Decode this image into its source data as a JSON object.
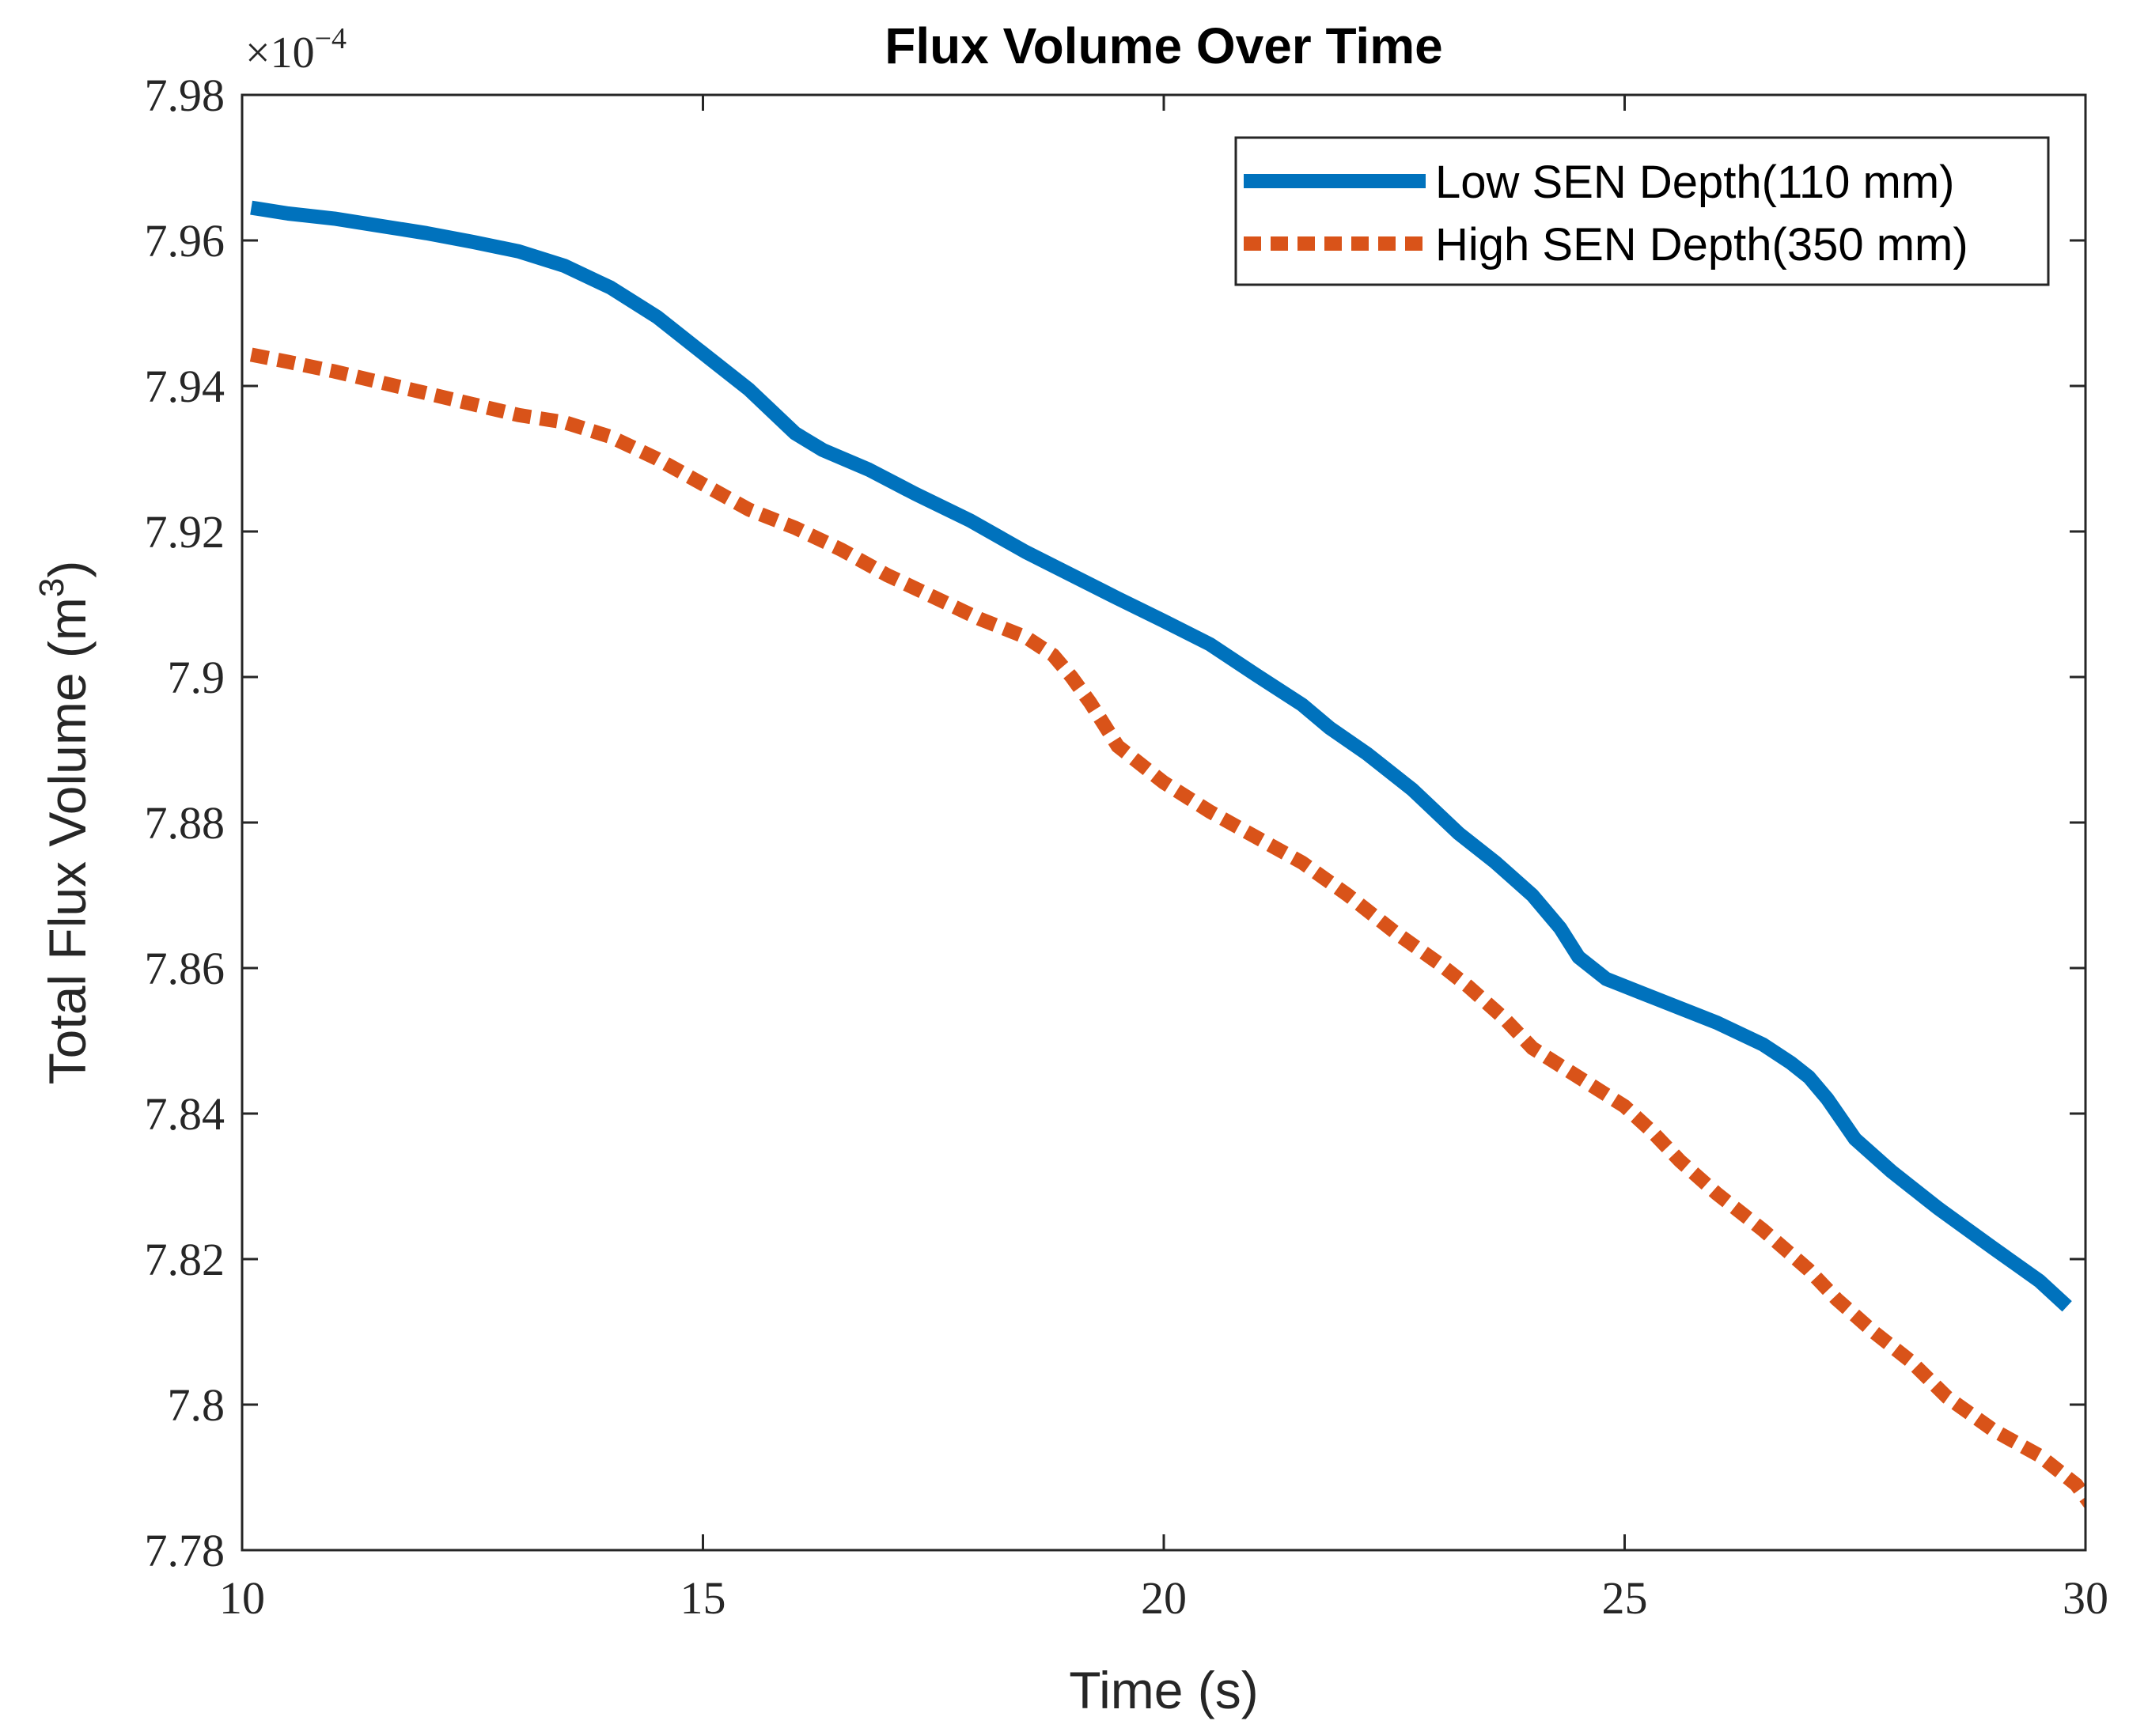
{
  "chart_data": {
    "type": "line",
    "title": "Flux Volume Over Time",
    "xlabel": "Time (s)",
    "ylabel": "Total Flux Volume (m",
    "ylabel_superscript": "3",
    "ylabel_suffix": ")",
    "y_multiplier": "×10",
    "y_multiplier_exponent": "−4",
    "xlim": [
      10,
      30
    ],
    "ylim": [
      7.78,
      7.98
    ],
    "x_ticks": [
      10,
      15,
      20,
      25,
      30
    ],
    "x_tick_labels": [
      "10",
      "15",
      "20",
      "25",
      "30"
    ],
    "y_ticks": [
      7.78,
      7.8,
      7.82,
      7.84,
      7.86,
      7.88,
      7.9,
      7.92,
      7.94,
      7.96,
      7.98
    ],
    "y_tick_labels": [
      "7.78",
      "7.8",
      "7.82",
      "7.84",
      "7.86",
      "7.88",
      "7.9",
      "7.92",
      "7.94",
      "7.96",
      "7.98"
    ],
    "grid": false,
    "legend_position": "top-right",
    "series": [
      {
        "name": "Low SEN Depth(110 mm)",
        "color": "#0072BD",
        "style": "solid",
        "x": [
          10.1,
          10.5,
          11,
          11.5,
          12,
          12.5,
          13,
          13.5,
          14,
          14.5,
          15,
          15.5,
          16,
          16.3,
          16.8,
          17.3,
          17.9,
          18.5,
          19,
          19.5,
          20,
          20.5,
          21,
          21.5,
          21.8,
          22.2,
          22.7,
          23.2,
          23.6,
          24,
          24.3,
          24.5,
          24.8,
          25.2,
          25.6,
          26,
          26.5,
          26.8,
          27,
          27.2,
          27.5,
          27.9,
          28.4,
          29,
          29.5,
          29.8
        ],
        "values": [
          7.9645,
          7.9637,
          7.963,
          7.962,
          7.961,
          7.9598,
          7.9585,
          7.9565,
          7.9535,
          7.9495,
          7.9445,
          7.9395,
          7.9335,
          7.9312,
          7.9285,
          7.9252,
          7.9215,
          7.9172,
          7.914,
          7.9108,
          7.9077,
          7.9045,
          7.9003,
          7.8962,
          7.893,
          7.8895,
          7.8845,
          7.8785,
          7.8745,
          7.87,
          7.8655,
          7.8615,
          7.8585,
          7.8565,
          7.8545,
          7.8525,
          7.8495,
          7.847,
          7.845,
          7.842,
          7.8365,
          7.832,
          7.827,
          7.8215,
          7.817,
          7.8135
        ]
      },
      {
        "name": "High SEN Depth(350 mm)",
        "color": "#D95319",
        "style": "dashed",
        "x": [
          10.1,
          10.5,
          11,
          11.5,
          12,
          12.5,
          13,
          13.5,
          14,
          14.5,
          15,
          15.5,
          16,
          16.5,
          17,
          17.5,
          18,
          18.5,
          18.8,
          19,
          19.2,
          19.5,
          20,
          20.5,
          21,
          21.5,
          22,
          22.5,
          23,
          23.3,
          23.7,
          24,
          24.5,
          25,
          25.3,
          25.6,
          26,
          26.5,
          27,
          27.3,
          27.7,
          28.1,
          28.5,
          29,
          29.5,
          29.9,
          30.1
        ],
        "values": [
          7.9443,
          7.9433,
          7.942,
          7.9405,
          7.939,
          7.9375,
          7.936,
          7.935,
          7.933,
          7.93,
          7.9265,
          7.923,
          7.9205,
          7.9175,
          7.914,
          7.911,
          7.908,
          7.9055,
          7.903,
          7.9,
          7.8965,
          7.8905,
          7.8855,
          7.8815,
          7.878,
          7.8745,
          7.87,
          7.865,
          7.8605,
          7.8575,
          7.853,
          7.849,
          7.845,
          7.841,
          7.8375,
          7.8335,
          7.829,
          7.824,
          7.8185,
          7.8145,
          7.81,
          7.806,
          7.801,
          7.7965,
          7.793,
          7.789,
          7.7855
        ]
      }
    ]
  }
}
